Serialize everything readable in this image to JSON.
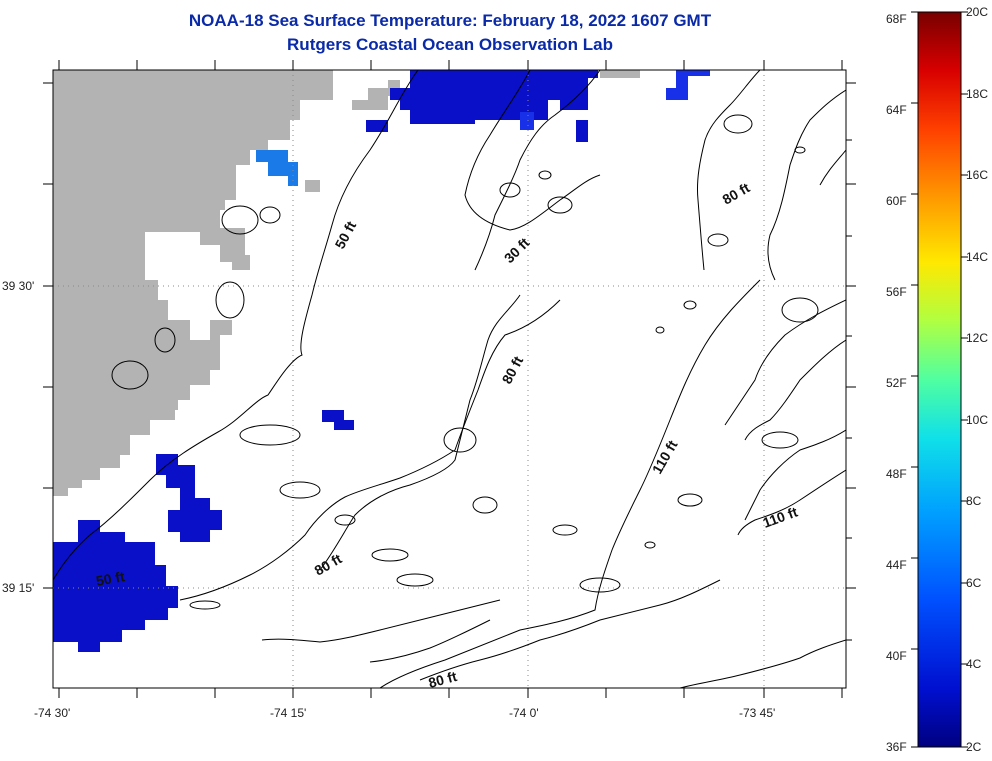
{
  "title": "NOAA-18 Sea Surface Temperature:  February 18, 2022 1607 GMT",
  "subtitle": "Rutgers Coastal Ocean Observation Lab",
  "axes": {
    "lat_labels": [
      "39 30'",
      "39 15'"
    ],
    "lon_labels": [
      "-74 30'",
      "-74 15'",
      "-74 0'",
      "-73 45'"
    ]
  },
  "contour_labels": [
    "50 ft",
    "30 ft",
    "80 ft",
    "80 ft",
    "80 ft",
    "110 ft",
    "110 ft",
    "80 ft",
    "50 ft"
  ],
  "colorbar": {
    "fahrenheit": [
      "68F",
      "64F",
      "60F",
      "56F",
      "52F",
      "48F",
      "44F",
      "40F",
      "36F"
    ],
    "celsius": [
      "20C",
      "18C",
      "16C",
      "14C",
      "12C",
      "10C",
      "8C",
      "6C",
      "4C",
      "2C"
    ],
    "colors": [
      "#7a0000",
      "#c80000",
      "#ff2a00",
      "#ff7a00",
      "#ffc800",
      "#e8ff10",
      "#88ff60",
      "#20e8c8",
      "#00b8ff",
      "#0064ff",
      "#0020e0",
      "#000080"
    ]
  },
  "colors": {
    "land": "#b3b3b3",
    "sst_dark": "#0a10c8",
    "sst_mid": "#1830e8",
    "sst_light": "#1a7ae8",
    "title": "#0a2aa8"
  }
}
